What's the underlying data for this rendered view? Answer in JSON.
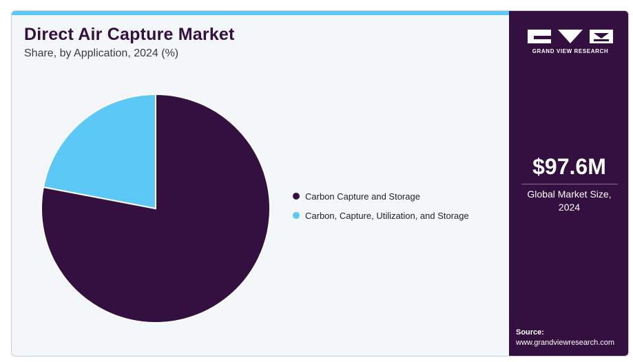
{
  "header": {
    "title": "Direct Air Capture Market",
    "subtitle": "Share, by Application, 2024 (%)"
  },
  "chart_data": {
    "type": "pie",
    "title": "Direct Air Capture Market",
    "subtitle": "Share, by Application, 2024 (%)",
    "legend_position": "right",
    "slices": [
      {
        "label": "Carbon Capture and Storage",
        "value": 78,
        "color": "#33103f"
      },
      {
        "label": "Carbon, Capture, Utilization, and Storage",
        "value": 22,
        "color": "#5cc8f5"
      }
    ]
  },
  "sidebar": {
    "brand": "GRAND VIEW RESEARCH",
    "market_value": "$97.6M",
    "market_label_line1": "Global Market Size,",
    "market_label_line2": "2024",
    "source_label": "Source:",
    "source_url": "www.grandviewresearch.com"
  },
  "colors": {
    "brand_dark": "#33103f",
    "accent": "#5cc8f5",
    "panel_bg": "#f3f7fa"
  }
}
